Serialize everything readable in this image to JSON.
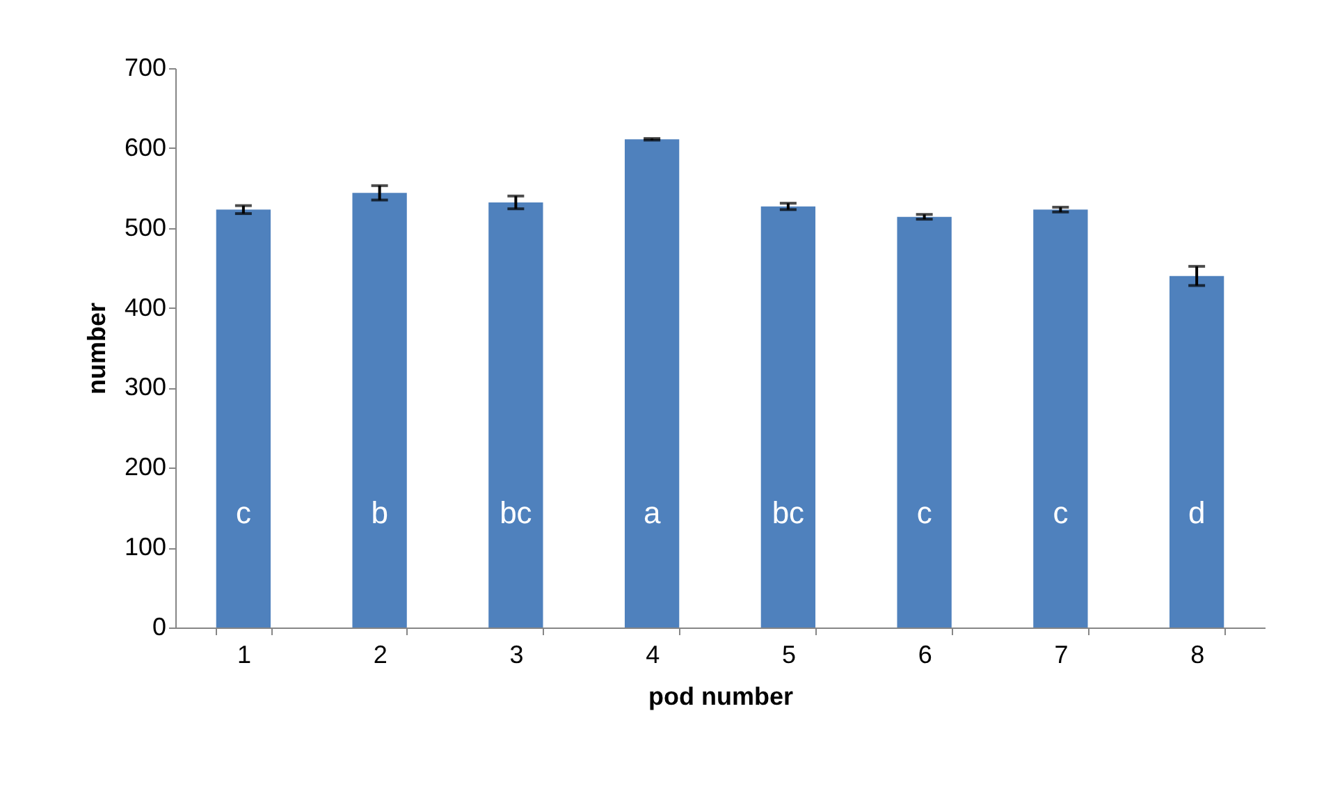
{
  "chart_data": {
    "type": "bar",
    "xlabel": "pod number",
    "ylabel": "number",
    "categories": [
      "1",
      "2",
      "3",
      "4",
      "5",
      "6",
      "7",
      "8"
    ],
    "values": [
      523,
      544,
      532,
      611,
      527,
      514,
      523,
      440
    ],
    "errors": [
      5,
      9,
      8,
      1,
      4,
      3,
      3,
      12
    ],
    "color": "#4f81bd",
    "ylim": [
      0,
      700
    ],
    "yticks": [
      0,
      100,
      200,
      300,
      400,
      500,
      600,
      700
    ],
    "grid": false,
    "annotations": [
      "c",
      "b",
      "bc",
      "a",
      "bc",
      "c",
      "c",
      "d"
    ]
  }
}
